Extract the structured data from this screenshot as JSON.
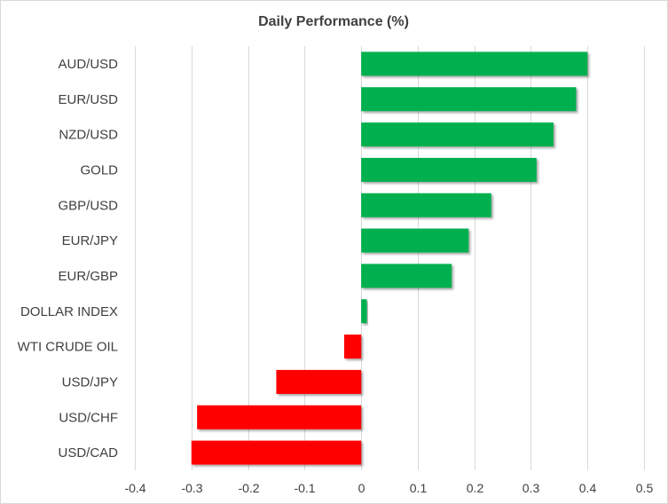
{
  "chart_data": {
    "type": "bar",
    "orientation": "horizontal",
    "title": "Daily Performance (%)",
    "xlabel": "",
    "ylabel": "",
    "categories": [
      "AUD/USD",
      "EUR/USD",
      "NZD/USD",
      "GOLD",
      "GBP/USD",
      "EUR/JPY",
      "EUR/GBP",
      "DOLLAR INDEX",
      "WTI CRUDE OIL",
      "USD/JPY",
      "USD/CHF",
      "USD/CAD"
    ],
    "values": [
      0.4,
      0.38,
      0.34,
      0.31,
      0.23,
      0.19,
      0.16,
      0.01,
      -0.03,
      -0.15,
      -0.29,
      -0.3
    ],
    "xlim": [
      -0.4,
      0.5
    ],
    "xticks": [
      "-0.4",
      "-0.3",
      "-0.2",
      "-0.1",
      "0",
      "0.1",
      "0.2",
      "0.3",
      "0.4",
      "0.5"
    ],
    "grid": true,
    "colors": {
      "positive": "#00b050",
      "negative": "#ff0000",
      "grid": "#d9d9d9",
      "text": "#404040"
    }
  }
}
